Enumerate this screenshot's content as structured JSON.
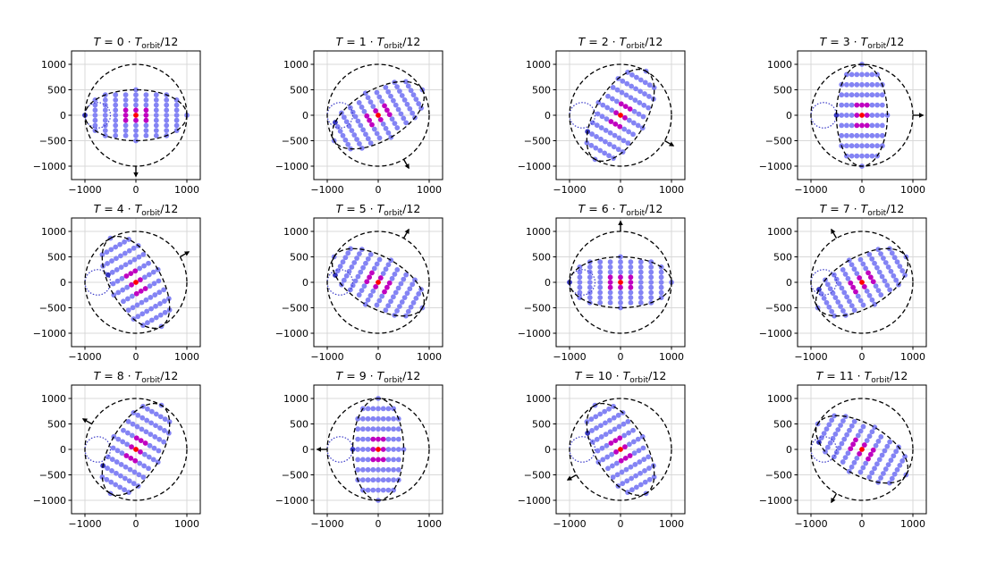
{
  "chart_data": {
    "type": "scatter",
    "layout": {
      "rows": 3,
      "cols": 4
    },
    "title_template": {
      "prefix": "T",
      "equals": " = ",
      "dot": " · ",
      "sym": "T",
      "sub": "orbit",
      "suffix": "/12"
    },
    "panels": [
      {
        "k": 0,
        "title_number": "0"
      },
      {
        "k": 1,
        "title_number": "1"
      },
      {
        "k": 2,
        "title_number": "2"
      },
      {
        "k": 3,
        "title_number": "3"
      },
      {
        "k": 4,
        "title_number": "4"
      },
      {
        "k": 5,
        "title_number": "5"
      },
      {
        "k": 6,
        "title_number": "6"
      },
      {
        "k": 7,
        "title_number": "7"
      },
      {
        "k": 8,
        "title_number": "8"
      },
      {
        "k": 9,
        "title_number": "9"
      },
      {
        "k": 10,
        "title_number": "10"
      },
      {
        "k": 11,
        "title_number": "11"
      }
    ],
    "xlim": [
      -1250,
      1250
    ],
    "ylim": [
      -1250,
      1250
    ],
    "xticks": [
      -1000,
      0,
      1000
    ],
    "xtick_labels": [
      "−1000",
      "0",
      "1000"
    ],
    "yticks": [
      1000,
      500,
      0,
      -500,
      -1000
    ],
    "ytick_labels": [
      "1000",
      "500",
      "0",
      "−500",
      "−1000"
    ],
    "grid": true,
    "orbit_circle": {
      "radius": 1000,
      "style": "dashed",
      "color": "#000000"
    },
    "body_ellipse": {
      "semi_major": 1000,
      "semi_minor": 500,
      "rotation_per_step_deg": 30,
      "style": "dashed",
      "color": "#000000"
    },
    "small_circle": {
      "center": [
        -750,
        0
      ],
      "radius": 250,
      "style": "dotted",
      "color": "#3a3ac8"
    },
    "dot_grid": {
      "dx": 200,
      "dy": 100,
      "semi_major": 1000,
      "semi_minor": 500
    },
    "arrow": {
      "start_angle_deg": -90,
      "rotation_per_step_deg": 30,
      "length": 200,
      "color": "#000000"
    },
    "colors": {
      "dots": "#8484f4",
      "inner": "#c000c0",
      "center": "#ff0000",
      "marker": "#3636c0",
      "grid": "#d8d8d8",
      "axes": "#000000"
    }
  }
}
